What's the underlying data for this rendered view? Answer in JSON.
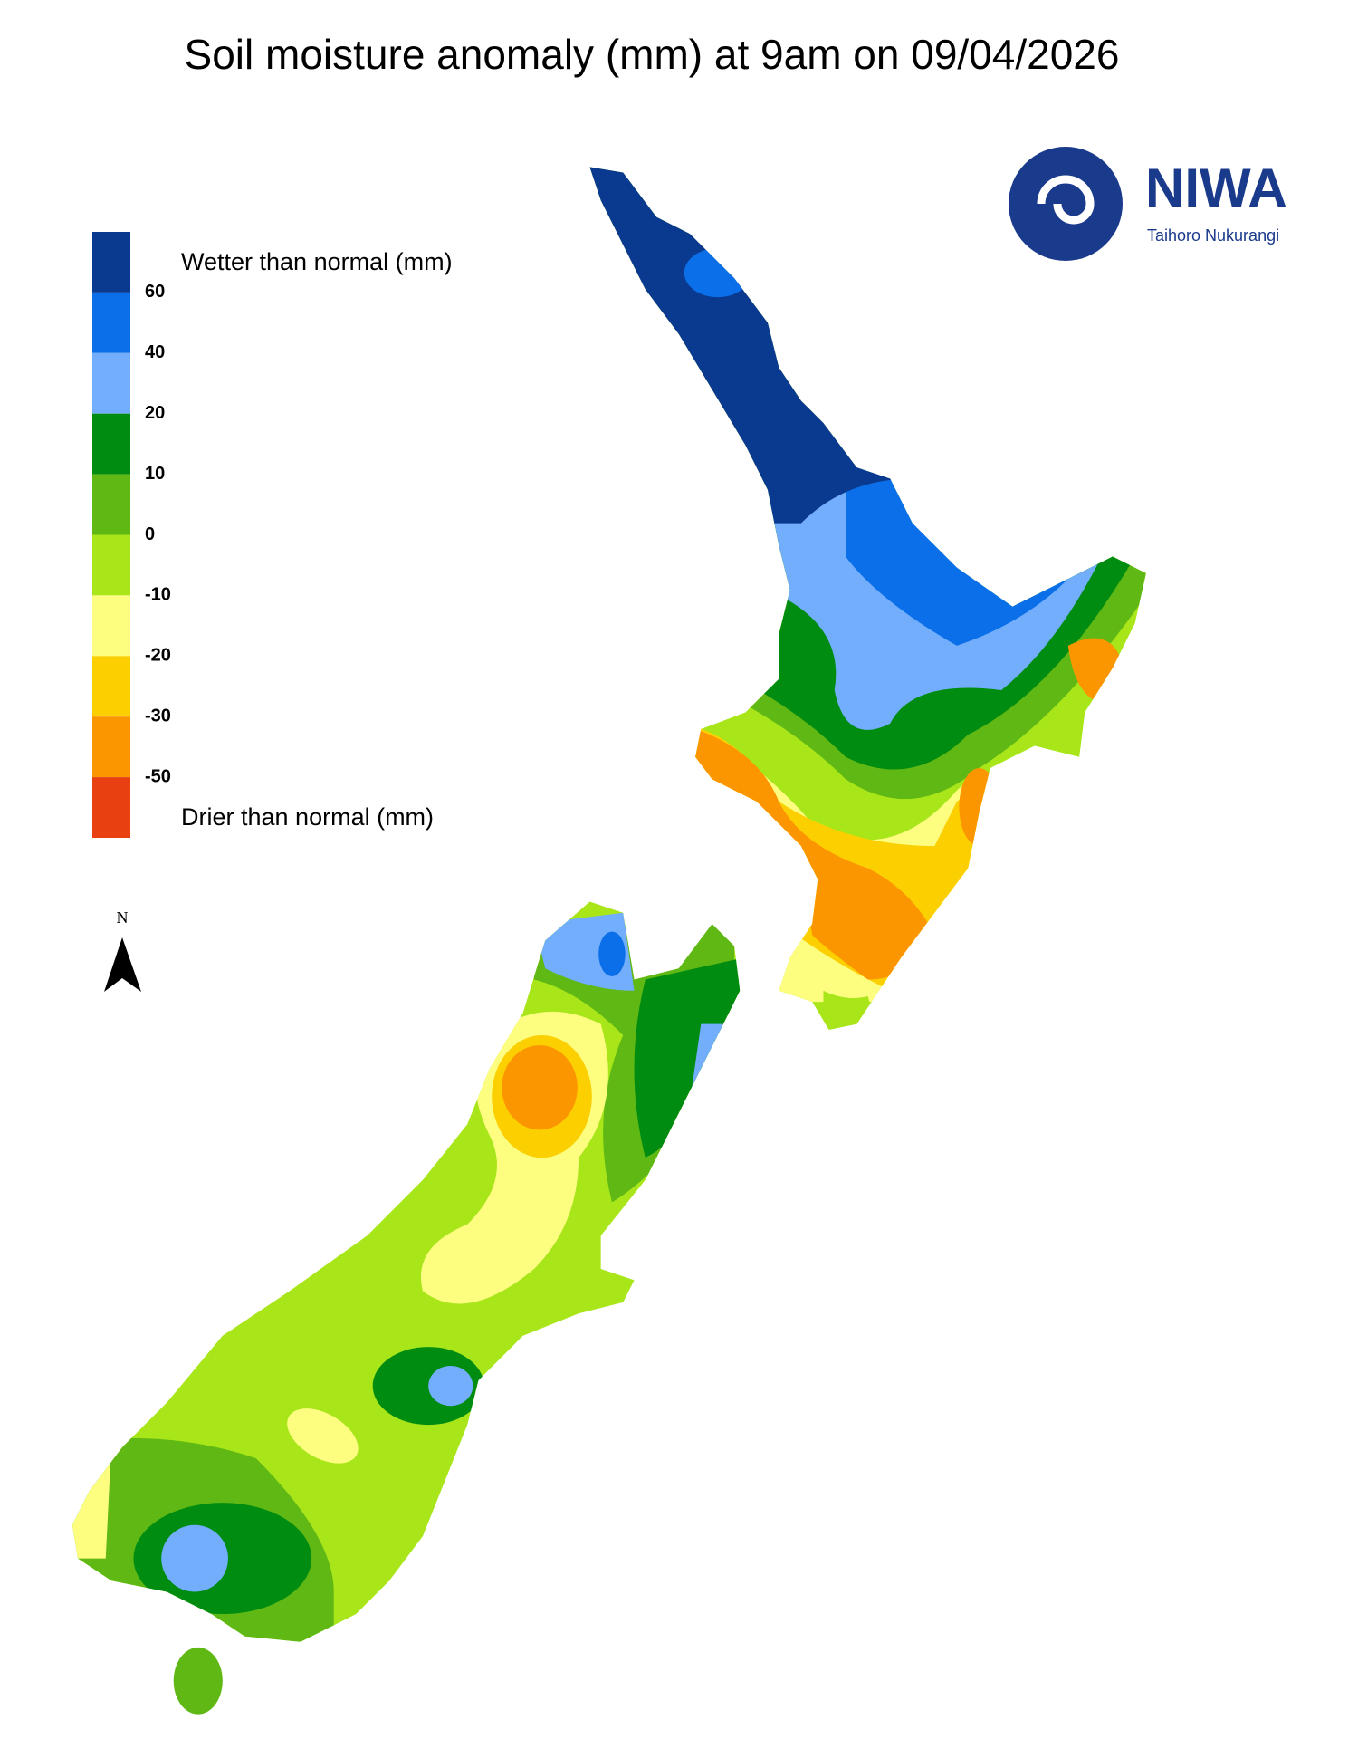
{
  "title": "Soil moisture anomaly (mm) at 9am on 09/04/2026",
  "logo": {
    "name": "NIWA",
    "tagline": "Taihoro Nukurangi"
  },
  "legend": {
    "top_label": "Wetter than normal (mm)",
    "bottom_label": "Drier than normal (mm)",
    "ticks": [
      60,
      40,
      20,
      10,
      0,
      -10,
      -20,
      -30,
      -50
    ],
    "colors": [
      "#0a3a8f",
      "#0a6fe8",
      "#72aefc",
      "#008c10",
      "#5fb814",
      "#a8e61a",
      "#fdfd80",
      "#fcd000",
      "#fc9600",
      "#e84010"
    ]
  },
  "north_label": "N"
}
